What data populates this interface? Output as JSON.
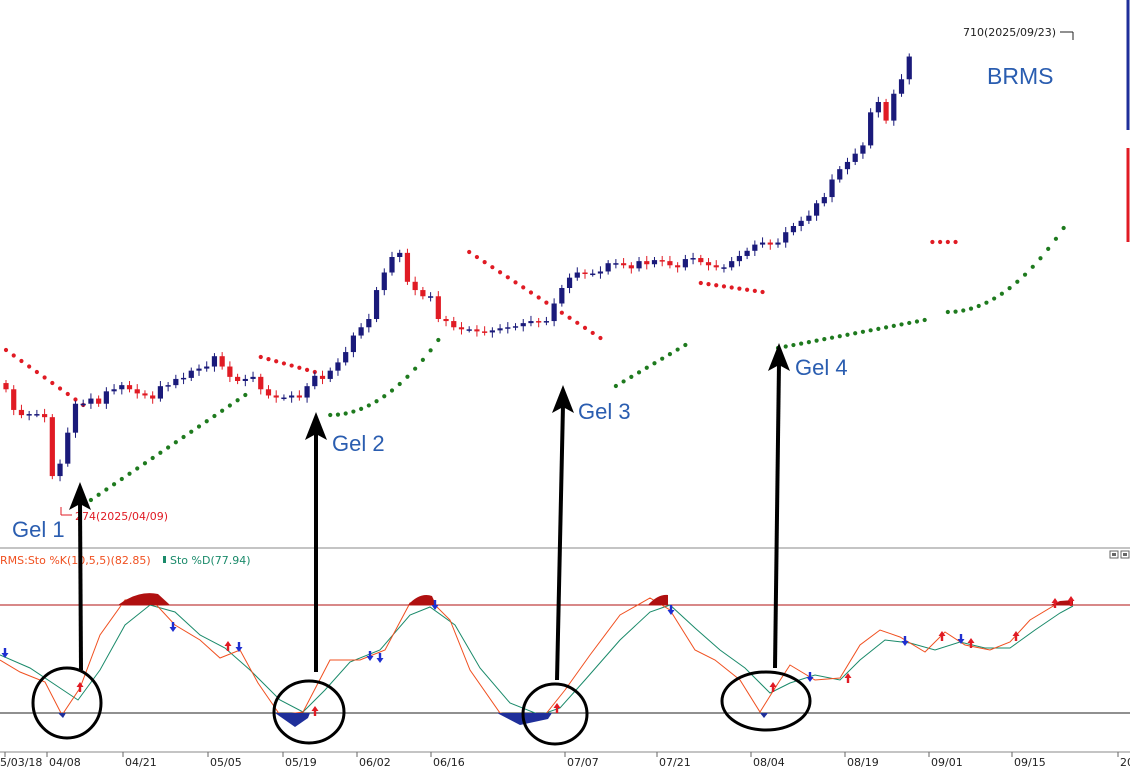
{
  "ticker": "BRMS",
  "colors": {
    "up_candle": "#1a1a7a",
    "down_candle": "#e01b24",
    "sar_above": "#e01b24",
    "sar_below": "#1e7a1e",
    "k_line": "#f05020",
    "d_line": "#1a8a6a",
    "overbought": "#b01010",
    "oversold": "#1f2f9a",
    "annotation_text": "#2a5db0"
  },
  "chart_data": [
    {
      "type": "candlestick",
      "name": "price",
      "title": "BRMS",
      "max_label": "710(2025/09/23)",
      "min_label": "274(2025/04/09)",
      "annotations": [
        {
          "label": "Gel 1",
          "date_label": "04/08"
        },
        {
          "label": "Gel 2",
          "date_label": "05/19"
        },
        {
          "label": "Gel 3",
          "date_label": "07/07"
        },
        {
          "label": "Gel 4",
          "date_label": "08/04"
        }
      ],
      "x_ticks": [
        "5/03/18",
        "04/08",
        "04/21",
        "05/05",
        "05/19",
        "06/02",
        "06/16",
        "07/07",
        "07/21",
        "08/04",
        "08/19",
        "09/01",
        "09/15",
        "20"
      ]
    },
    {
      "type": "line",
      "name": "stochastic",
      "legend": [
        {
          "text": "RMS:Sto %K(10,5,5)(82.85)"
        },
        {
          "text": "Sto %D(77.94)"
        }
      ],
      "overbought": 80,
      "oversold": 20
    }
  ]
}
